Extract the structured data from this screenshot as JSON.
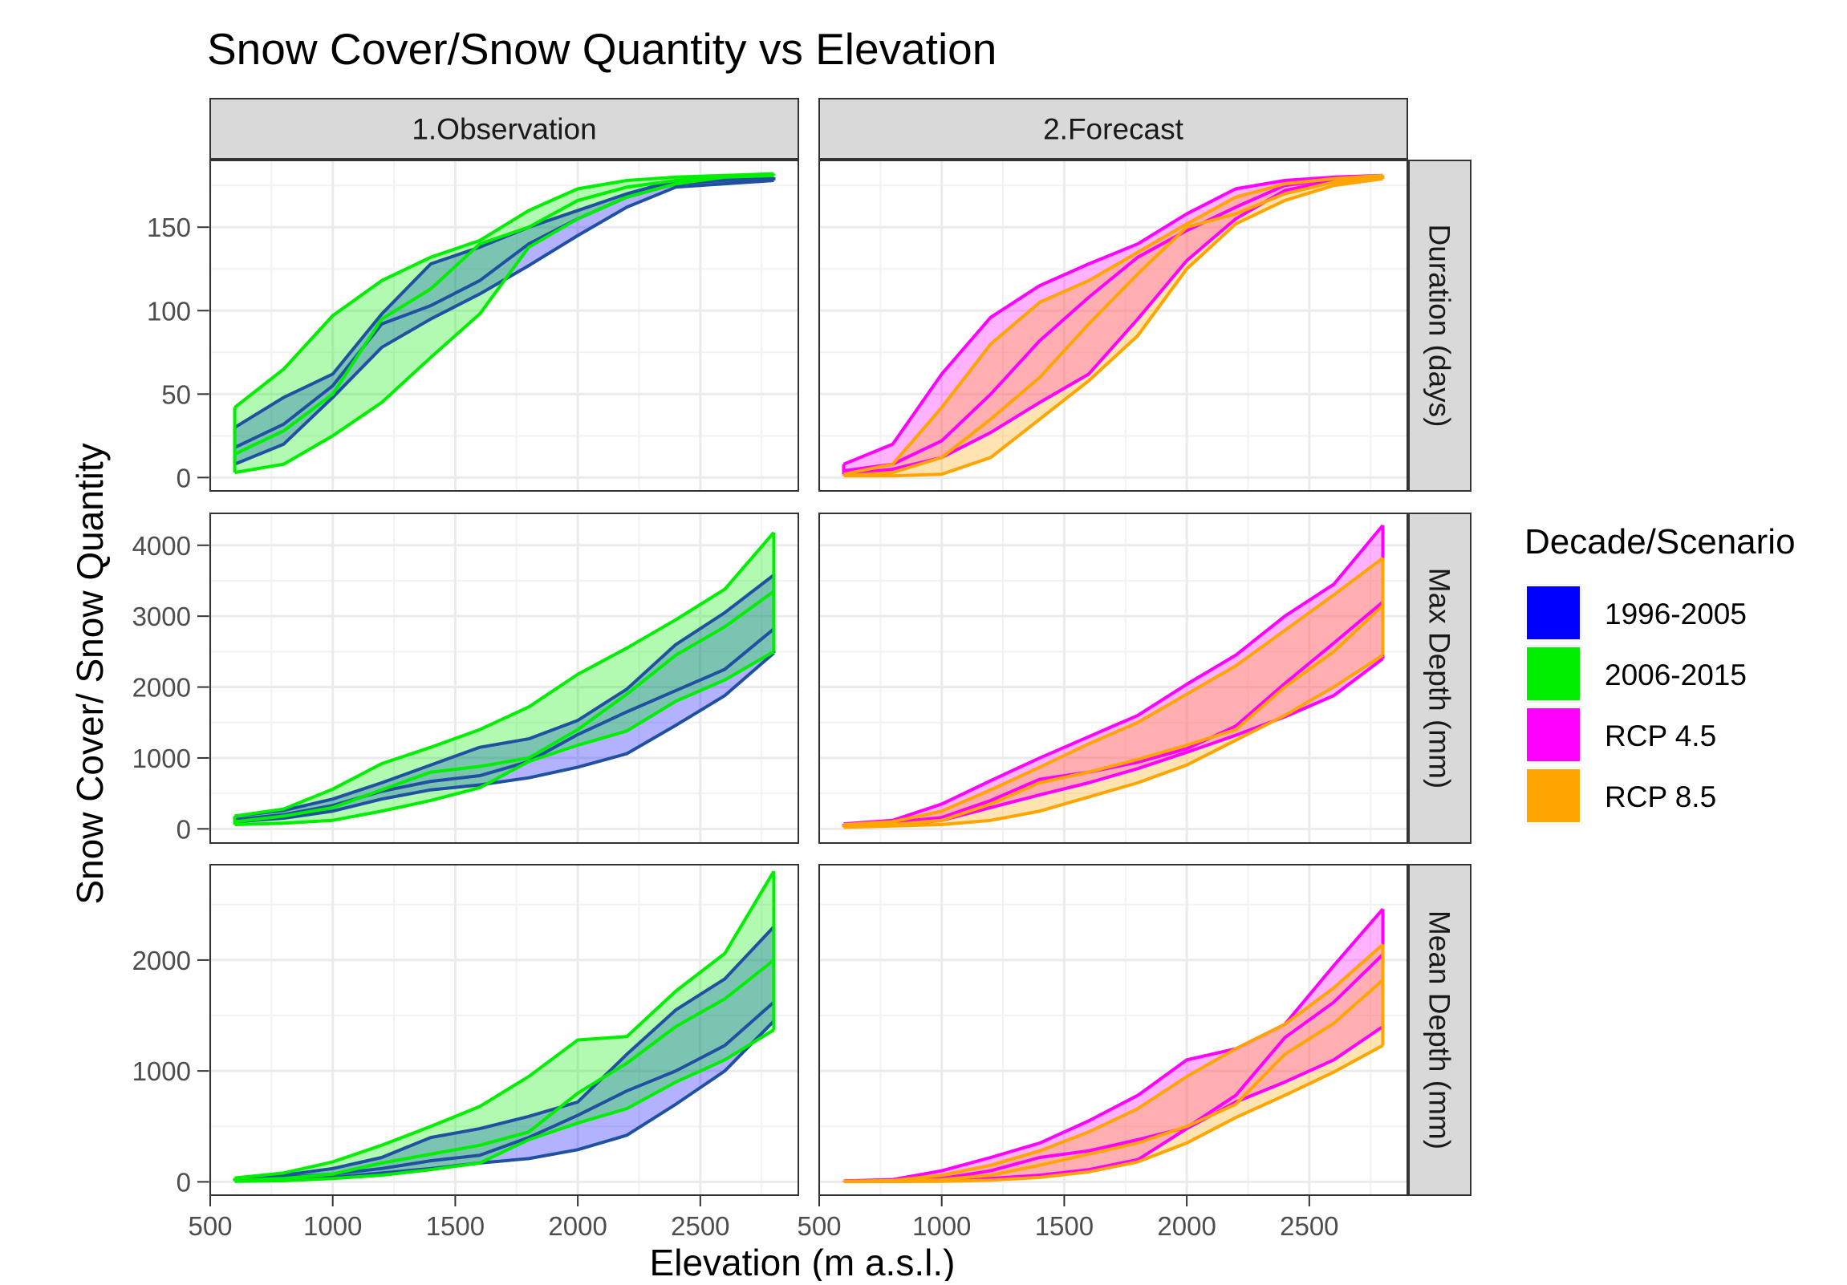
{
  "chart_data": {
    "type": "area",
    "title": "Snow Cover/Snow Quantity vs Elevation",
    "xlabel": "Elevation (m a.s.l.)",
    "ylabel": "Snow Cover/ Snow Quantity",
    "x": [
      600,
      800,
      1000,
      1200,
      1400,
      1600,
      1800,
      2000,
      2200,
      2400,
      2600,
      2800
    ],
    "xlim": [
      500,
      2900
    ],
    "xticks": [
      500,
      1000,
      1500,
      2000,
      2500
    ],
    "grid": true,
    "legend_position": "right",
    "legend": {
      "title": "Decade/Scenario",
      "entries": [
        {
          "name": "1996-2005",
          "color": "#0000FF"
        },
        {
          "name": "2006-2015",
          "color": "#00EE00"
        },
        {
          "name": "RCP 4.5",
          "color": "#FF00FF"
        },
        {
          "name": "RCP 8.5",
          "color": "#FFA500"
        }
      ]
    },
    "columns": [
      "1.Observation",
      "2.Forecast"
    ],
    "rows": [
      {
        "label": "Duration (days)",
        "ylim": [
          -8,
          190
        ],
        "yticks": [
          0,
          50,
          100,
          150
        ],
        "panels": [
          {
            "column": "1.Observation",
            "series": [
              {
                "name": "1996-2005",
                "color": "#0000FF",
                "border": "#2050A0",
                "low": [
                  8,
                  20,
                  48,
                  78,
                  95,
                  110,
                  127,
                  145,
                  162,
                  174,
                  176,
                  178
                ],
                "mid": [
                  18,
                  32,
                  55,
                  92,
                  103,
                  118,
                  140,
                  155,
                  168,
                  176,
                  178,
                  179
                ],
                "high": [
                  30,
                  48,
                  62,
                  98,
                  128,
                  138,
                  150,
                  160,
                  170,
                  178,
                  179,
                  180
                ]
              },
              {
                "name": "2006-2015",
                "color": "#00EE00",
                "border": "#00EE00",
                "low": [
                  3,
                  8,
                  25,
                  45,
                  72,
                  98,
                  138,
                  155,
                  168,
                  176,
                  180,
                  181
                ],
                "mid": [
                  14,
                  28,
                  50,
                  95,
                  113,
                  140,
                  150,
                  166,
                  174,
                  178,
                  180,
                  181
                ],
                "high": [
                  42,
                  65,
                  97,
                  118,
                  132,
                  142,
                  160,
                  173,
                  178,
                  180,
                  181,
                  182
                ]
              }
            ]
          },
          {
            "column": "2.Forecast",
            "series": [
              {
                "name": "RCP 4.5",
                "color": "#FF00FF",
                "border": "#FF00FF",
                "low": [
                  2,
                  5,
                  12,
                  27,
                  45,
                  62,
                  95,
                  130,
                  155,
                  172,
                  178,
                  180
                ],
                "mid": [
                  4,
                  8,
                  22,
                  50,
                  82,
                  108,
                  132,
                  148,
                  162,
                  175,
                  179,
                  180
                ],
                "high": [
                  8,
                  20,
                  62,
                  96,
                  115,
                  128,
                  140,
                  158,
                  173,
                  178,
                  180,
                  181
                ]
              },
              {
                "name": "RCP 8.5",
                "color": "#FFA500",
                "border": "#FFA500",
                "low": [
                  1,
                  1,
                  2,
                  12,
                  35,
                  58,
                  85,
                  125,
                  152,
                  166,
                  175,
                  179
                ],
                "mid": [
                  1,
                  3,
                  12,
                  35,
                  60,
                  92,
                  122,
                  150,
                  158,
                  170,
                  177,
                  180
                ],
                "high": [
                  2,
                  8,
                  42,
                  80,
                  105,
                  118,
                  135,
                  152,
                  168,
                  176,
                  179,
                  181
                ]
              }
            ]
          }
        ]
      },
      {
        "label": "Max Depth (mm)",
        "ylim": [
          -200,
          4450
        ],
        "yticks": [
          0,
          1000,
          2000,
          3000,
          4000
        ],
        "panels": [
          {
            "column": "1.Observation",
            "series": [
              {
                "name": "1996-2005",
                "color": "#0000FF",
                "border": "#2050A0",
                "low": [
                  100,
                  150,
                  250,
                  420,
                  550,
                  620,
                  720,
                  870,
                  1060,
                  1460,
                  1880,
                  2480
                ],
                "mid": [
                  130,
                  200,
                  330,
                  530,
                  670,
                  750,
                  950,
                  1330,
                  1650,
                  1950,
                  2250,
                  2820
                ],
                "high": [
                  180,
                  260,
                  420,
                  650,
                  900,
                  1150,
                  1270,
                  1530,
                  1970,
                  2600,
                  3050,
                  3580
                ]
              },
              {
                "name": "2006-2015",
                "color": "#00EE00",
                "border": "#00EE00",
                "low": [
                  60,
                  80,
                  120,
                  250,
                  400,
                  580,
                  950,
                  1180,
                  1380,
                  1800,
                  2100,
                  2500
                ],
                "mid": [
                  100,
                  180,
                  300,
                  550,
                  800,
                  880,
                  1000,
                  1400,
                  1900,
                  2450,
                  2850,
                  3350
                ],
                "high": [
                  180,
                  280,
                  560,
                  920,
                  1150,
                  1400,
                  1720,
                  2180,
                  2550,
                  2950,
                  3380,
                  4180
                ]
              }
            ]
          },
          {
            "column": "2.Forecast",
            "series": [
              {
                "name": "RCP 4.5",
                "color": "#FF00FF",
                "border": "#FF00FF",
                "low": [
                  30,
                  50,
                  120,
                  300,
                  480,
                  650,
                  850,
                  1080,
                  1320,
                  1580,
                  1880,
                  2400
                ],
                "mid": [
                  50,
                  90,
                  160,
                  400,
                  700,
                  800,
                  940,
                  1130,
                  1450,
                  2050,
                  2620,
                  3200
                ],
                "high": [
                  70,
                  120,
                  350,
                  680,
                  1000,
                  1300,
                  1600,
                  2040,
                  2450,
                  3000,
                  3450,
                  4280
                ]
              },
              {
                "name": "RCP 8.5",
                "color": "#FFA500",
                "border": "#FFA500",
                "low": [
                  20,
                  40,
                  60,
                  120,
                  250,
                  450,
                  650,
                  900,
                  1250,
                  1600,
                  2000,
                  2450
                ],
                "mid": [
                  40,
                  60,
                  120,
                  350,
                  650,
                  800,
                  980,
                  1180,
                  1400,
                  2000,
                  2500,
                  3150
                ],
                "high": [
                  60,
                  100,
                  250,
                  550,
                  870,
                  1200,
                  1500,
                  1900,
                  2300,
                  2800,
                  3300,
                  3820
                ]
              }
            ]
          }
        ]
      },
      {
        "label": "Mean Depth (mm)",
        "ylim": [
          -120,
          2860
        ],
        "yticks": [
          0,
          1000,
          2000
        ],
        "panels": [
          {
            "column": "1.Observation",
            "series": [
              {
                "name": "1996-2005",
                "color": "#0000FF",
                "border": "#2050A0",
                "low": [
                  10,
                  20,
                  40,
                  80,
                  120,
                  170,
                  210,
                  290,
                  420,
                  700,
                  1000,
                  1450
                ],
                "mid": [
                  20,
                  40,
                  70,
                  120,
                  190,
                  240,
                  400,
                  600,
                  820,
                  1000,
                  1230,
                  1620
                ],
                "high": [
                  30,
                  60,
                  120,
                  220,
                  400,
                  480,
                  590,
                  720,
                  1150,
                  1550,
                  1830,
                  2300
                ]
              },
              {
                "name": "2006-2015",
                "color": "#00EE00",
                "border": "#00EE00",
                "low": [
                  5,
                  10,
                  30,
                  60,
                  110,
                  170,
                  380,
                  530,
                  660,
                  900,
                  1100,
                  1370
                ],
                "mid": [
                  15,
                  30,
                  70,
                  170,
                  250,
                  330,
                  450,
                  800,
                  1070,
                  1400,
                  1650,
                  2000
                ],
                "high": [
                  35,
                  80,
                  180,
                  330,
                  500,
                  680,
                  950,
                  1280,
                  1310,
                  1720,
                  2060,
                  2800
                ]
              }
            ]
          },
          {
            "column": "2.Forecast",
            "series": [
              {
                "name": "RCP 4.5",
                "color": "#FF00FF",
                "border": "#FF00FF",
                "low": [
                  3,
                  5,
                  10,
                  30,
                  60,
                  110,
                  200,
                  480,
                  720,
                  900,
                  1100,
                  1400
                ],
                "mid": [
                  5,
                  10,
                  30,
                  100,
                  220,
                  280,
                  380,
                  490,
                  780,
                  1300,
                  1620,
                  2050
                ],
                "high": [
                  8,
                  20,
                  100,
                  220,
                  350,
                  550,
                  780,
                  1100,
                  1200,
                  1420,
                  1950,
                  2460
                ]
              },
              {
                "name": "RCP 8.5",
                "color": "#FFA500",
                "border": "#FFA500",
                "low": [
                  2,
                  3,
                  5,
                  15,
                  40,
                  90,
                  180,
                  350,
                  580,
                  780,
                  990,
                  1230
                ],
                "mid": [
                  3,
                  8,
                  20,
                  60,
                  150,
                  250,
                  350,
                  500,
                  700,
                  1150,
                  1430,
                  1820
                ],
                "high": [
                  5,
                  12,
                  60,
                  150,
                  280,
                  450,
                  660,
                  950,
                  1200,
                  1420,
                  1750,
                  2140
                ]
              }
            ]
          }
        ]
      }
    ]
  }
}
